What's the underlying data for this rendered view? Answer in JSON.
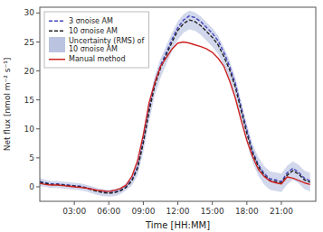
{
  "chart_data": {
    "type": "line",
    "title": "",
    "xlabel": "Time [HH:MM]",
    "ylabel": "Net flux [nmol m⁻² s⁻¹]",
    "xlim": [
      0,
      23.99
    ],
    "ylim": [
      -2.5,
      31
    ],
    "xticks": [
      {
        "value": 3,
        "label": "03:00"
      },
      {
        "value": 6,
        "label": "06:00"
      },
      {
        "value": 9,
        "label": "09:00"
      },
      {
        "value": 12,
        "label": "12:00"
      },
      {
        "value": 15,
        "label": "15:00"
      },
      {
        "value": 18,
        "label": "18:00"
      },
      {
        "value": 21,
        "label": "21:00"
      }
    ],
    "yticks": [
      0,
      5,
      10,
      15,
      20,
      25,
      30
    ],
    "grid": false,
    "legend": "upper left",
    "x": [
      0.0,
      0.5,
      1.0,
      1.5,
      2.0,
      2.5,
      3.0,
      3.5,
      4.0,
      4.5,
      5.0,
      5.5,
      6.0,
      6.5,
      7.0,
      7.5,
      8.0,
      8.5,
      9.0,
      9.5,
      10.0,
      10.5,
      11.0,
      11.5,
      12.0,
      12.5,
      13.0,
      13.5,
      14.0,
      14.5,
      15.0,
      15.5,
      16.0,
      16.5,
      17.0,
      17.5,
      18.0,
      18.5,
      19.0,
      19.5,
      20.0,
      20.5,
      21.0,
      21.5,
      22.0,
      22.5,
      23.0,
      23.5
    ],
    "series": [
      {
        "name": "3 σnoise AM",
        "type": "line",
        "color": "#4444bb",
        "line_style": "dashed",
        "values": [
          0.9,
          0.7,
          0.5,
          0.5,
          0.4,
          0.3,
          0.2,
          0.1,
          -0.1,
          -0.4,
          -0.7,
          -0.9,
          -1.0,
          -0.9,
          -0.6,
          0.0,
          1.2,
          3.5,
          8.0,
          13.5,
          18.0,
          21.0,
          23.2,
          25.5,
          27.5,
          28.8,
          29.5,
          29.2,
          28.5,
          27.5,
          26.5,
          25.2,
          23.2,
          20.8,
          17.8,
          13.8,
          9.8,
          6.2,
          3.8,
          2.3,
          1.4,
          1.2,
          0.9,
          2.4,
          3.2,
          2.5,
          1.5,
          1.0
        ]
      },
      {
        "name": "10 σnoise AM",
        "type": "line",
        "color": "#222222",
        "line_style": "dashed",
        "values": [
          0.8,
          0.6,
          0.4,
          0.4,
          0.3,
          0.2,
          0.1,
          0.0,
          -0.2,
          -0.5,
          -0.8,
          -1.0,
          -1.1,
          -1.0,
          -0.7,
          -0.1,
          1.0,
          3.2,
          7.6,
          13.0,
          17.5,
          20.5,
          22.8,
          25.0,
          27.0,
          28.2,
          28.8,
          28.5,
          27.8,
          26.8,
          25.8,
          24.5,
          22.5,
          20.2,
          17.2,
          13.2,
          9.2,
          5.8,
          3.5,
          2.0,
          1.1,
          0.9,
          0.7,
          2.0,
          2.8,
          2.2,
          1.2,
          0.8
        ]
      },
      {
        "name": "Uncertainty (RMS) of\n10 σnoise AM",
        "type": "band",
        "color": "#8899cc",
        "upper": [
          1.5,
          1.2,
          1.0,
          1.0,
          0.9,
          0.8,
          0.7,
          0.6,
          0.4,
          0.1,
          -0.2,
          -0.4,
          -0.5,
          -0.4,
          -0.1,
          0.6,
          1.8,
          4.4,
          9.2,
          14.8,
          19.2,
          22.2,
          24.4,
          26.6,
          28.6,
          29.8,
          30.4,
          30.1,
          29.4,
          28.4,
          27.4,
          26.1,
          24.1,
          21.8,
          18.8,
          14.8,
          10.8,
          7.4,
          5.1,
          3.6,
          2.7,
          2.5,
          2.3,
          3.6,
          4.4,
          3.8,
          2.8,
          2.4
        ],
        "lower": [
          0.1,
          -0.0,
          -0.2,
          -0.2,
          -0.3,
          -0.4,
          -0.5,
          -0.6,
          -0.8,
          -1.1,
          -1.4,
          -1.6,
          -1.7,
          -1.6,
          -1.3,
          -0.6,
          0.2,
          2.0,
          6.0,
          11.2,
          15.8,
          18.8,
          21.2,
          23.4,
          25.4,
          26.6,
          27.2,
          26.9,
          26.2,
          25.2,
          24.2,
          22.9,
          20.9,
          18.6,
          15.6,
          11.6,
          7.6,
          4.2,
          1.9,
          0.4,
          -0.5,
          -0.7,
          -0.9,
          0.4,
          1.2,
          0.6,
          -0.4,
          -0.8
        ]
      },
      {
        "name": "Manual method",
        "type": "line",
        "color": "#cc2222",
        "line_style": "solid",
        "values": [
          0.6,
          0.4,
          0.3,
          0.3,
          0.2,
          0.1,
          0.0,
          -0.1,
          -0.2,
          -0.4,
          -0.6,
          -0.7,
          -0.8,
          -0.6,
          -0.3,
          0.3,
          1.8,
          4.5,
          9.0,
          14.5,
          18.0,
          20.8,
          22.3,
          23.8,
          24.8,
          25.0,
          24.8,
          24.5,
          24.2,
          23.8,
          23.2,
          22.2,
          20.8,
          18.3,
          15.3,
          11.5,
          8.0,
          5.2,
          3.0,
          1.8,
          1.0,
          0.7,
          0.5,
          1.7,
          1.5,
          1.1,
          0.7,
          0.4
        ]
      }
    ]
  }
}
